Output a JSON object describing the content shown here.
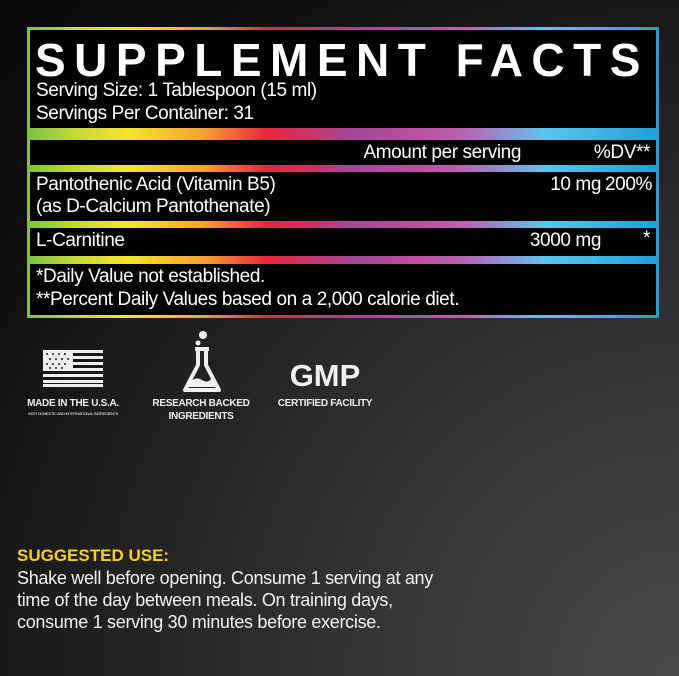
{
  "facts": {
    "title": "SUPPLEMENT FACTS",
    "serving_size": "Serving Size: 1 Tablespoon (15 ml)",
    "servings_per_container": "Servings Per Container: 31",
    "header_amount": "Amount per serving",
    "header_dv": "%DV**",
    "rows": [
      {
        "name": "Pantothenic Acid (Vitamin B5)",
        "subname": "(as D-Calcium Pantothenate)",
        "amount": "10 mg",
        "dv": "200%"
      },
      {
        "name": "L-Carnitine",
        "amount": "3000 mg",
        "dv": "*"
      }
    ],
    "footnote1": "*Daily Value not established.",
    "footnote2": "**Percent Daily Values based on a 2,000 calorie diet."
  },
  "badges": [
    {
      "icon": "us-flag-icon",
      "label": "MADE IN THE U.S.A.",
      "sublabel": "WITH DOMESTIC AND INTERNATIONAL INGREDIENTS"
    },
    {
      "icon": "flask-icon",
      "label": "RESEARCH BACKED",
      "label2": "INGREDIENTS"
    },
    {
      "icon": "gmp-logo",
      "logo_text": "GMP",
      "label": "CERTIFIED FACILITY"
    }
  ],
  "suggested_use": {
    "heading": "SUGGESTED USE:",
    "text": "Shake well before opening. Consume 1 serving at any time of the day between meals. On training days, consume 1 serving 30 minutes before exercise."
  },
  "colors": {
    "accent_yellow": "#f7d117",
    "rainbow": [
      "#7cc242",
      "#f5e52e",
      "#f7a033",
      "#e8253a",
      "#a3479a",
      "#c04ea0",
      "#5bc5ee",
      "#1e9fd6"
    ]
  }
}
